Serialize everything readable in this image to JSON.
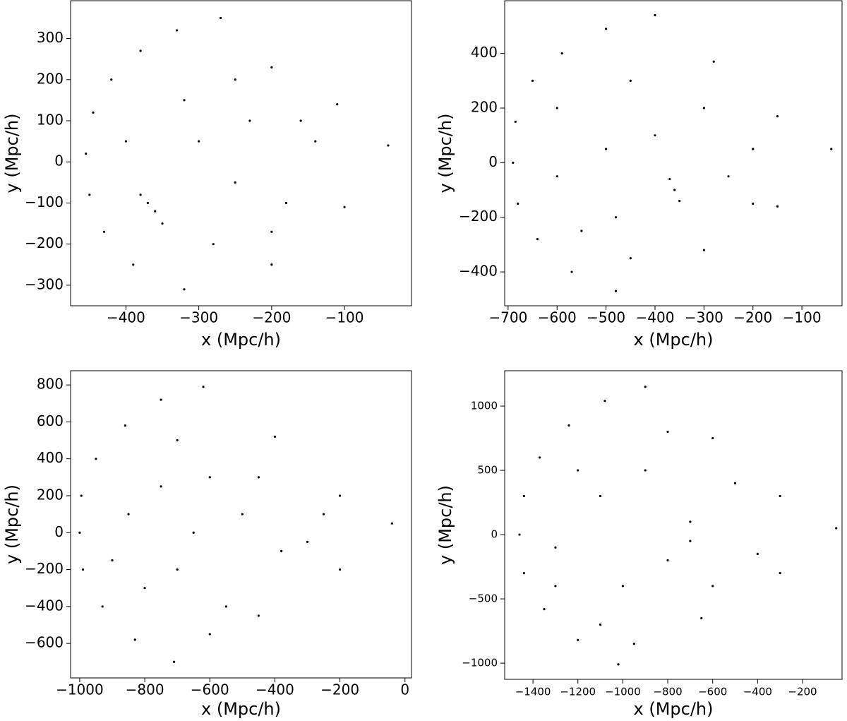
{
  "chart_data": [
    {
      "type": "scatter",
      "xlabel": "x (Mpc/h)",
      "ylabel": "y (Mpc/h)",
      "color": "#000000",
      "x": [
        -270,
        -330,
        -380,
        -420,
        -445,
        -455,
        -450,
        -430,
        -390,
        -320,
        -200,
        -100,
        -40,
        -110,
        -200,
        -370,
        -360,
        -380,
        -350,
        -250,
        -230,
        -300,
        -180,
        -200,
        -140,
        -320,
        -400,
        -280,
        -250,
        -160
      ],
      "y": [
        350,
        320,
        270,
        200,
        120,
        20,
        -80,
        -170,
        -250,
        -310,
        -250,
        -110,
        40,
        140,
        230,
        -100,
        -120,
        -80,
        -150,
        200,
        100,
        50,
        -100,
        -170,
        50,
        150,
        50,
        -200,
        -50,
        100
      ],
      "xlim": [
        -476,
        -8
      ],
      "ylim": [
        -350,
        392
      ],
      "xticks": [
        {
          "value": -400,
          "label": "−400"
        },
        {
          "value": -300,
          "label": "−300"
        },
        {
          "value": -200,
          "label": "−200"
        },
        {
          "value": -100,
          "label": "−100"
        }
      ],
      "yticks": [
        {
          "value": -300,
          "label": "−300"
        },
        {
          "value": -200,
          "label": "−200"
        },
        {
          "value": -100,
          "label": "−100"
        },
        0,
        100,
        200,
        300
      ]
    },
    {
      "type": "scatter",
      "xlabel": "x (Mpc/h)",
      "ylabel": "y (Mpc/h)",
      "color": "#000000",
      "x": [
        -400,
        -500,
        -590,
        -650,
        -685,
        -690,
        -680,
        -640,
        -570,
        -480,
        -300,
        -150,
        -40,
        -150,
        -280,
        -360,
        -370,
        -350,
        -480,
        -600,
        -450,
        -500,
        -250,
        -200,
        -400,
        -550,
        -600,
        -300,
        -200,
        -450
      ],
      "y": [
        540,
        490,
        400,
        300,
        150,
        0,
        -150,
        -280,
        -400,
        -470,
        -320,
        -160,
        50,
        170,
        370,
        -100,
        -60,
        -140,
        -200,
        200,
        300,
        50,
        -50,
        -150,
        100,
        -250,
        -50,
        200,
        50,
        -350
      ],
      "xlim": [
        -707,
        -18
      ],
      "ylim": [
        -524,
        593
      ],
      "xticks": [
        {
          "value": -700,
          "label": "−700"
        },
        {
          "value": -600,
          "label": "−600"
        },
        {
          "value": -500,
          "label": "−500"
        },
        {
          "value": -400,
          "label": "−400"
        },
        {
          "value": -300,
          "label": "−300"
        },
        {
          "value": -200,
          "label": "−200"
        },
        {
          "value": -100,
          "label": "−100"
        }
      ],
      "yticks": [
        {
          "value": -400,
          "label": "−400"
        },
        {
          "value": -200,
          "label": "−200"
        },
        0,
        200,
        400
      ]
    },
    {
      "type": "scatter",
      "xlabel": "x (Mpc/h)",
      "ylabel": "y (Mpc/h)",
      "color": "#000000",
      "x": [
        -620,
        -750,
        -860,
        -950,
        -995,
        -1000,
        -990,
        -930,
        -830,
        -710,
        -450,
        -200,
        -40,
        -200,
        -400,
        -380,
        -800,
        -700,
        -600,
        -500,
        -300,
        -850,
        -700,
        -550,
        -450,
        -650,
        -900,
        -250,
        -750,
        -600
      ],
      "y": [
        790,
        720,
        580,
        400,
        200,
        0,
        -200,
        -400,
        -580,
        -700,
        -450,
        -200,
        50,
        200,
        520,
        -100,
        -300,
        -200,
        300,
        100,
        -50,
        100,
        500,
        -400,
        300,
        0,
        -150,
        100,
        250,
        -550
      ],
      "xlim": [
        -1028,
        20
      ],
      "ylim": [
        -787,
        877
      ],
      "xticks": [
        {
          "value": -1000,
          "label": "−1000"
        },
        {
          "value": -800,
          "label": "−800"
        },
        {
          "value": -600,
          "label": "−600"
        },
        {
          "value": -400,
          "label": "−400"
        },
        {
          "value": -200,
          "label": "−200"
        },
        0
      ],
      "yticks": [
        {
          "value": -600,
          "label": "−600"
        },
        {
          "value": -400,
          "label": "−400"
        },
        {
          "value": -200,
          "label": "−200"
        },
        0,
        200,
        400,
        600,
        800
      ]
    },
    {
      "type": "scatter",
      "xlabel": "x (Mpc/h)",
      "ylabel": "y (Mpc/h)",
      "color": "#000000",
      "x": [
        -900,
        -1080,
        -1240,
        -1370,
        -1440,
        -1460,
        -1440,
        -1350,
        -1200,
        -1020,
        -650,
        -300,
        -50,
        -300,
        -600,
        -1100,
        -1000,
        -900,
        -700,
        -400,
        -1300,
        -1100,
        -800,
        -600,
        -800,
        -1200,
        -500,
        -950,
        -1300,
        -700
      ],
      "y": [
        1150,
        1040,
        850,
        600,
        300,
        0,
        -300,
        -580,
        -820,
        -1010,
        -650,
        -300,
        50,
        300,
        750,
        -700,
        -400,
        500,
        100,
        -150,
        -100,
        300,
        -200,
        -400,
        800,
        500,
        400,
        -850,
        -400,
        -50
      ],
      "xlim": [
        -1526,
        -24
      ],
      "ylim": [
        -1126,
        1275
      ],
      "xticks": [
        {
          "value": -1400,
          "label": "−1400"
        },
        {
          "value": -1200,
          "label": "−1200"
        },
        {
          "value": -1000,
          "label": "−1000"
        },
        {
          "value": -800,
          "label": "−800"
        },
        {
          "value": -600,
          "label": "−600"
        },
        {
          "value": -400,
          "label": "−400"
        },
        {
          "value": -200,
          "label": "−200"
        }
      ],
      "yticks": [
        {
          "value": -1000,
          "label": "−1000"
        },
        {
          "value": -500,
          "label": "−500"
        },
        0,
        500,
        1000
      ]
    }
  ]
}
